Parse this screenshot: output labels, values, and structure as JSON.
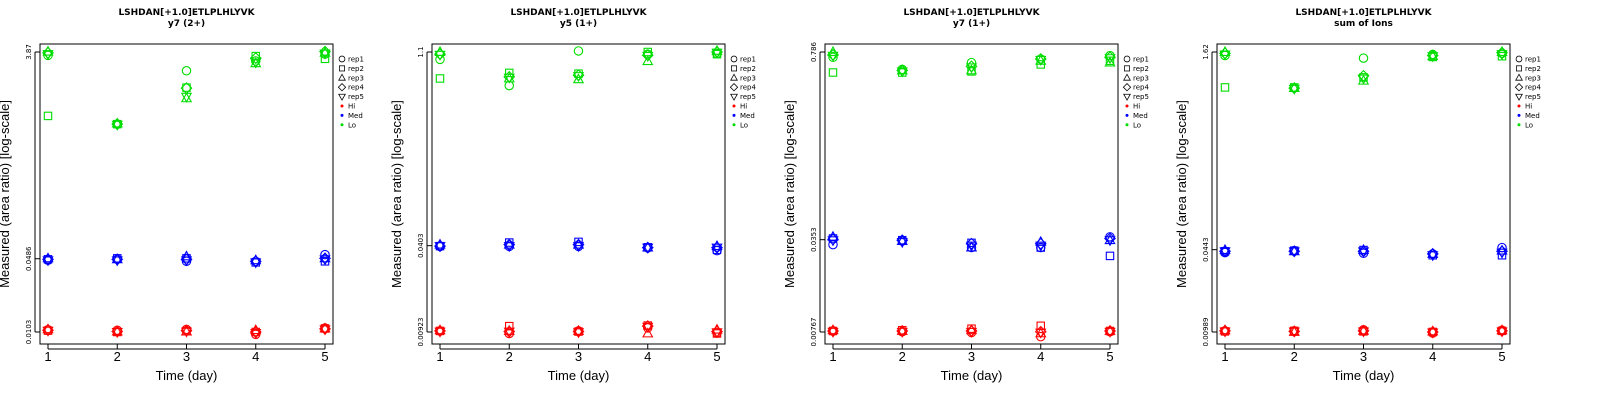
{
  "chart_data": [
    {
      "type": "scatter",
      "title": "LSHDAN[+1.0]ETLPLHLYVK",
      "subtitle": "y7 (2+)",
      "xlabel": "Time (day)",
      "ylabel": "Measured (area ratio) [log-scale]",
      "y_scale": "log",
      "ylim": [
        0.0103,
        3.87
      ],
      "xlim": [
        1,
        5
      ],
      "x_ticks": [
        "1",
        "2",
        "3",
        "4",
        "5"
      ],
      "y_ticks": [
        "0.0103",
        "0.0486",
        "3.87"
      ],
      "legend": {
        "placement": "right",
        "entries": [
          "rep1",
          "rep2",
          "rep3",
          "rep4",
          "rep5",
          "Hi",
          "Med",
          "Lo"
        ]
      },
      "colors": {
        "Hi": "#ff0000",
        "Med": "#0000ff",
        "Lo": "#00dd00"
      },
      "series": [
        {
          "name": "rep1",
          "Hi": [
            0.0108,
            0.0107,
            0.0109,
            0.0098,
            0.0112
          ],
          "Med": [
            0.047,
            0.048,
            0.046,
            0.046,
            0.053
          ],
          "Lo": [
            3.6,
            0.84,
            2.6,
            3.2,
            3.7
          ]
        },
        {
          "name": "rep2",
          "Hi": [
            0.0106,
            0.0103,
            0.0105,
            0.0103,
            0.0111
          ],
          "Med": [
            0.048,
            0.049,
            0.049,
            0.045,
            0.046
          ],
          "Lo": [
            1.0,
            0.84,
            1.82,
            3.55,
            3.35
          ]
        },
        {
          "name": "rep3",
          "Hi": [
            0.0109,
            0.0104,
            0.0104,
            0.0107,
            0.0111
          ],
          "Med": [
            0.049,
            0.048,
            0.051,
            0.047,
            0.049
          ],
          "Lo": [
            3.9,
            0.85,
            1.45,
            3.05,
            3.8
          ]
        },
        {
          "name": "rep4",
          "Hi": [
            0.0107,
            0.0104,
            0.0106,
            0.0103,
            0.011
          ],
          "Med": [
            0.048,
            0.048,
            0.048,
            0.046,
            0.049
          ],
          "Lo": [
            3.8,
            0.84,
            1.8,
            3.4,
            3.9
          ]
        },
        {
          "name": "rep5",
          "Hi": [
            0.0106,
            0.0103,
            0.0104,
            0.0101,
            0.0109
          ],
          "Med": [
            0.047,
            0.047,
            0.047,
            0.045,
            0.048
          ],
          "Lo": [
            3.7,
            0.83,
            1.5,
            3.1,
            3.75
          ]
        }
      ]
    },
    {
      "type": "scatter",
      "title": "LSHDAN[+1.0]ETLPLHLYVK",
      "subtitle": "y5 (1+)",
      "xlabel": "Time (day)",
      "ylabel": "Measured (area ratio) [log-scale]",
      "y_scale": "log",
      "ylim": [
        0.00923,
        1.1
      ],
      "xlim": [
        1,
        5
      ],
      "x_ticks": [
        "1",
        "2",
        "3",
        "4",
        "5"
      ],
      "y_ticks": [
        "0.00923",
        "0.0403",
        "1.1"
      ],
      "legend": {
        "placement": "right",
        "entries": [
          "rep1",
          "rep2",
          "rep3",
          "rep4",
          "rep5",
          "Hi",
          "Med",
          "Lo"
        ]
      },
      "colors": {
        "Hi": "#ff0000",
        "Med": "#0000ff",
        "Lo": "#00dd00"
      },
      "series": [
        {
          "name": "rep1",
          "Hi": [
            0.0094,
            0.009,
            0.0094,
            0.0099,
            0.0091
          ],
          "Med": [
            0.0398,
            0.0398,
            0.0398,
            0.0388,
            0.037
          ],
          "Lo": [
            0.97,
            0.62,
            1.12,
            1.06,
            1.07
          ]
        },
        {
          "name": "rep2",
          "Hi": [
            0.0094,
            0.0102,
            0.0093,
            0.0103,
            0.009
          ],
          "Med": [
            0.04,
            0.0425,
            0.043,
            0.0392,
            0.0375
          ],
          "Lo": [
            0.7,
            0.77,
            0.76,
            1.1,
            1.06
          ]
        },
        {
          "name": "rep3",
          "Hi": [
            0.0095,
            0.0094,
            0.0094,
            0.009,
            0.0096
          ],
          "Med": [
            0.041,
            0.041,
            0.041,
            0.039,
            0.04
          ],
          "Lo": [
            1.1,
            0.7,
            0.69,
            0.94,
            1.12
          ]
        },
        {
          "name": "rep4",
          "Hi": [
            0.0094,
            0.0093,
            0.0093,
            0.0102,
            0.0093
          ],
          "Med": [
            0.04,
            0.041,
            0.041,
            0.039,
            0.039
          ],
          "Lo": [
            1.06,
            0.72,
            0.74,
            1.04,
            1.1
          ]
        },
        {
          "name": "rep5",
          "Hi": [
            0.0093,
            0.0093,
            0.0092,
            0.0101,
            0.0092
          ],
          "Med": [
            0.04,
            0.04,
            0.04,
            0.039,
            0.039
          ],
          "Lo": [
            1.05,
            0.71,
            0.73,
            1.03,
            1.09
          ]
        }
      ]
    },
    {
      "type": "scatter",
      "title": "LSHDAN[+1.0]ETLPLHLYVK",
      "subtitle": "y7 (1+)",
      "xlabel": "Time (day)",
      "ylabel": "Measured (area ratio) [log-scale]",
      "y_scale": "log",
      "ylim": [
        0.00767,
        0.786
      ],
      "xlim": [
        1,
        5
      ],
      "x_ticks": [
        "1",
        "2",
        "3",
        "4",
        "5"
      ],
      "y_ticks": [
        "0.00767",
        "0.0353",
        "0.786"
      ],
      "legend": {
        "placement": "right",
        "entries": [
          "rep1",
          "rep2",
          "rep3",
          "rep4",
          "rep5",
          "Hi",
          "Med",
          "Lo"
        ]
      },
      "colors": {
        "Hi": "#ff0000",
        "Med": "#0000ff",
        "Lo": "#00dd00"
      },
      "series": [
        {
          "name": "rep1",
          "Hi": [
            0.0078,
            0.0077,
            0.0076,
            0.0071,
            0.0077
          ],
          "Med": [
            0.0325,
            0.0345,
            0.031,
            0.031,
            0.037
          ],
          "Lo": [
            0.72,
            0.59,
            0.66,
            0.7,
            0.74
          ]
        },
        {
          "name": "rep2",
          "Hi": [
            0.0078,
            0.0079,
            0.0081,
            0.0085,
            0.0078
          ],
          "Med": [
            0.036,
            0.035,
            0.0335,
            0.031,
            0.027
          ],
          "Lo": [
            0.56,
            0.56,
            0.57,
            0.64,
            0.68
          ]
        },
        {
          "name": "rep3",
          "Hi": [
            0.0079,
            0.0078,
            0.0079,
            0.0075,
            0.0078
          ],
          "Med": [
            0.037,
            0.0345,
            0.031,
            0.034,
            0.035
          ],
          "Lo": [
            0.786,
            0.58,
            0.58,
            0.68,
            0.66
          ]
        },
        {
          "name": "rep4",
          "Hi": [
            0.0078,
            0.0078,
            0.0078,
            0.0077,
            0.0078
          ],
          "Med": [
            0.0355,
            0.035,
            0.033,
            0.033,
            0.036
          ],
          "Lo": [
            0.75,
            0.58,
            0.62,
            0.7,
            0.72
          ]
        },
        {
          "name": "rep5",
          "Hi": [
            0.0077,
            0.0077,
            0.0077,
            0.0076,
            0.0077
          ],
          "Med": [
            0.035,
            0.034,
            0.032,
            0.032,
            0.035
          ],
          "Lo": [
            0.74,
            0.57,
            0.61,
            0.69,
            0.71
          ]
        }
      ]
    },
    {
      "type": "scatter",
      "title": "LSHDAN[+1.0]ETLPLHLYVK",
      "subtitle": "sum of Ions",
      "xlabel": "Time (day)",
      "ylabel": "Measured (area ratio) [log-scale]",
      "y_scale": "log",
      "ylim": [
        0.00989,
        1.62
      ],
      "xlim": [
        1,
        5
      ],
      "x_ticks": [
        "1",
        "2",
        "3",
        "4",
        "5"
      ],
      "y_ticks": [
        "0.00989",
        "0.0443",
        "1.62"
      ],
      "legend": {
        "placement": "right",
        "entries": [
          "rep1",
          "rep2",
          "rep3",
          "rep4",
          "rep5",
          "Hi",
          "Med",
          "Lo"
        ]
      },
      "colors": {
        "Hi": "#ff0000",
        "Med": "#0000ff",
        "Lo": "#00dd00"
      },
      "series": [
        {
          "name": "rep1",
          "Hi": [
            0.0101,
            0.0101,
            0.0103,
            0.0097,
            0.0102
          ],
          "Med": [
            0.042,
            0.0435,
            0.0415,
            0.041,
            0.046
          ],
          "Lo": [
            1.52,
            0.84,
            1.45,
            1.55,
            1.58
          ]
        },
        {
          "name": "rep2",
          "Hi": [
            0.01,
            0.0101,
            0.01,
            0.0099,
            0.0101
          ],
          "Med": [
            0.043,
            0.0435,
            0.044,
            0.04,
            0.04
          ],
          "Lo": [
            0.85,
            0.85,
            1.02,
            1.48,
            1.5
          ]
        },
        {
          "name": "rep3",
          "Hi": [
            0.0102,
            0.0099,
            0.0101,
            0.01,
            0.0102
          ],
          "Med": [
            0.044,
            0.043,
            0.044,
            0.041,
            0.0435
          ],
          "Lo": [
            1.62,
            0.84,
            0.96,
            1.5,
            1.62
          ]
        },
        {
          "name": "rep4",
          "Hi": [
            0.0101,
            0.01,
            0.0101,
            0.0099,
            0.0101
          ],
          "Med": [
            0.043,
            0.043,
            0.043,
            0.041,
            0.043
          ],
          "Lo": [
            1.58,
            0.84,
            1.05,
            1.52,
            1.6
          ]
        },
        {
          "name": "rep5",
          "Hi": [
            0.01,
            0.01,
            0.01,
            0.0098,
            0.01
          ],
          "Med": [
            0.043,
            0.043,
            0.043,
            0.04,
            0.042
          ],
          "Lo": [
            1.55,
            0.83,
            1.0,
            1.5,
            1.56
          ]
        }
      ]
    }
  ]
}
